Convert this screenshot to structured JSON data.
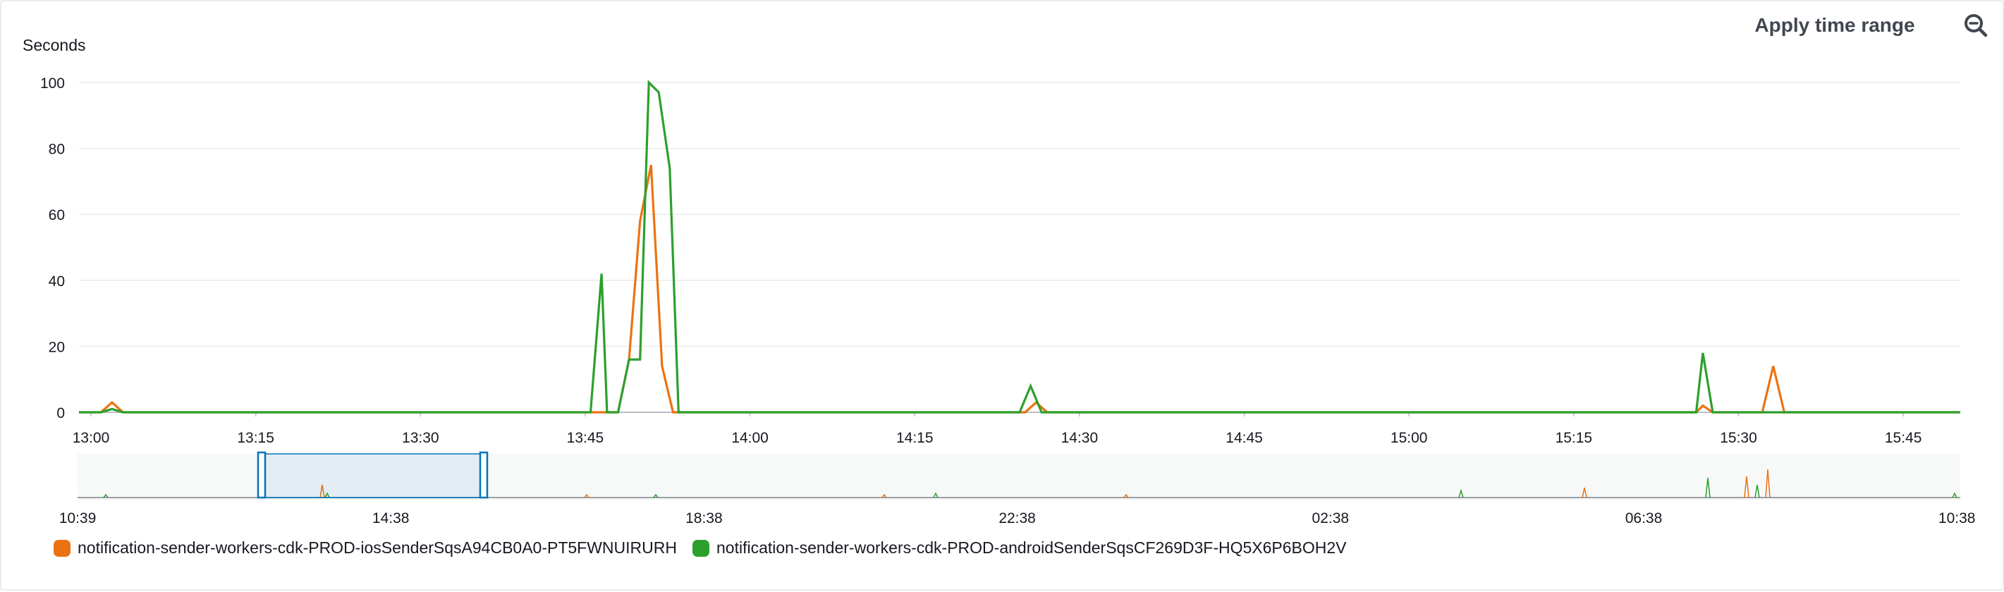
{
  "toolbar": {
    "apply_time_range_label": "Apply time range",
    "zoom_icon": "zoom-out-magnifier-icon"
  },
  "chart_data": {
    "type": "line",
    "ylabel": "Seconds",
    "ylim": [
      0,
      100
    ],
    "y_ticks": [
      "0",
      "20",
      "40",
      "60",
      "80",
      "100"
    ],
    "x_tick_labels": [
      "13:00",
      "13:15",
      "13:30",
      "13:45",
      "14:00",
      "14:15",
      "14:30",
      "14:45",
      "15:00",
      "15:15",
      "15:30",
      "15:45"
    ],
    "x_unit": "minutes past 13:00",
    "x_range": [
      0,
      171
    ],
    "grid": true,
    "legend_position": "bottom-left",
    "series": [
      {
        "name": "notification-sender-workers-cdk-PROD-iosSenderSqsA94CB0A0-PT5FWNUIRURH",
        "color": "#ec7211",
        "points": [
          [
            0,
            0
          ],
          [
            2,
            0
          ],
          [
            3,
            3
          ],
          [
            4,
            0
          ],
          [
            45,
            0
          ],
          [
            46,
            0
          ],
          [
            47,
            0
          ],
          [
            48,
            0
          ],
          [
            49,
            0
          ],
          [
            50,
            16
          ],
          [
            51,
            58
          ],
          [
            52,
            75
          ],
          [
            53,
            14
          ],
          [
            54,
            0
          ],
          [
            55,
            0
          ],
          [
            85,
            0
          ],
          [
            86,
            0
          ],
          [
            87,
            3
          ],
          [
            88,
            0
          ],
          [
            146,
            0
          ],
          [
            147,
            0
          ],
          [
            147.6,
            2
          ],
          [
            148.5,
            0
          ],
          [
            153,
            0
          ],
          [
            154,
            14
          ],
          [
            155,
            0
          ],
          [
            171,
            0
          ]
        ]
      },
      {
        "name": "notification-sender-workers-cdk-PROD-androidSenderSqsCF269D3F-HQ5X6P6BOH2V",
        "color": "#2ca02c",
        "points": [
          [
            0,
            0
          ],
          [
            2,
            0
          ],
          [
            3,
            1
          ],
          [
            4,
            0
          ],
          [
            45,
            0
          ],
          [
            46,
            0
          ],
          [
            46.5,
            0
          ],
          [
            47.5,
            42
          ],
          [
            48,
            0
          ],
          [
            49,
            0
          ],
          [
            50,
            16
          ],
          [
            51,
            16
          ],
          [
            51.8,
            100
          ],
          [
            52.7,
            97
          ],
          [
            53.7,
            74
          ],
          [
            54.5,
            0
          ],
          [
            84,
            0
          ],
          [
            85,
            0
          ],
          [
            85.5,
            0
          ],
          [
            86.5,
            8
          ],
          [
            87.5,
            0
          ],
          [
            146,
            0
          ],
          [
            147,
            0
          ],
          [
            147.6,
            18
          ],
          [
            148.5,
            0
          ],
          [
            171,
            0
          ]
        ]
      }
    ],
    "overview": {
      "x_tick_labels": [
        "10:39",
        "14:38",
        "18:38",
        "22:38",
        "02:38",
        "06:38",
        "10:38"
      ],
      "selected_range_labels": [
        "13:00",
        "15:51"
      ]
    }
  }
}
